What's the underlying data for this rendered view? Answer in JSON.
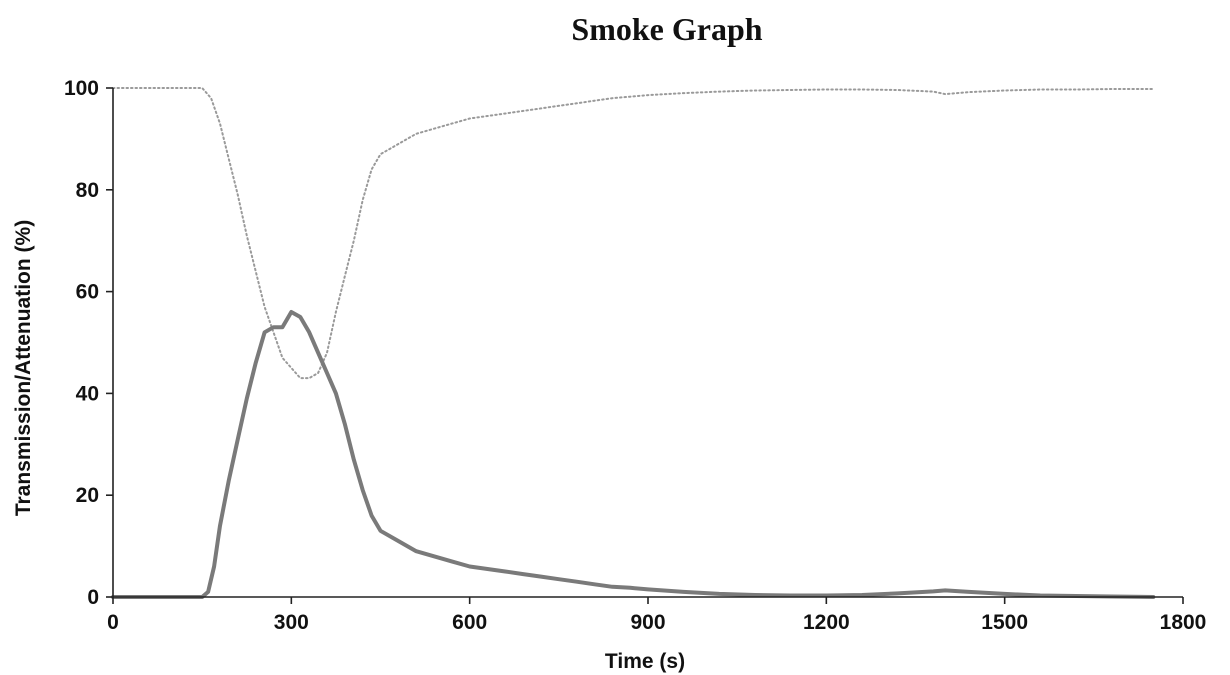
{
  "chart_data": {
    "type": "line",
    "title": "Smoke Graph",
    "subtitle": "",
    "xlabel": "Time (s)",
    "ylabel": "Transmission/Attenuation (%)",
    "xlim": [
      0,
      1800
    ],
    "ylim": [
      0,
      100
    ],
    "xticks": [
      0,
      300,
      600,
      900,
      1200,
      1500,
      1800
    ],
    "yticks": [
      0,
      20,
      40,
      60,
      80,
      100
    ],
    "grid": false,
    "legend": "none",
    "series": [
      {
        "color": "#9a9a9a",
        "style": "dotted",
        "x": [
          0,
          60,
          120,
          150,
          165,
          180,
          195,
          210,
          225,
          240,
          255,
          270,
          285,
          300,
          315,
          330,
          345,
          360,
          375,
          390,
          405,
          420,
          435,
          450,
          480,
          510,
          540,
          570,
          600,
          630,
          660,
          690,
          720,
          750,
          780,
          810,
          840,
          870,
          900,
          960,
          1020,
          1080,
          1140,
          1200,
          1260,
          1320,
          1380,
          1400,
          1440,
          1500,
          1560,
          1620,
          1680,
          1750
        ],
        "y": [
          100,
          100,
          100,
          100,
          98,
          93,
          86,
          79,
          71,
          64,
          57,
          52,
          47,
          45,
          43,
          43,
          44,
          48,
          56,
          63,
          70,
          78,
          84,
          87,
          89,
          91,
          92,
          93,
          94,
          94.5,
          95,
          95.5,
          96,
          96.5,
          97,
          97.5,
          98,
          98.3,
          98.6,
          99,
          99.3,
          99.5,
          99.6,
          99.7,
          99.7,
          99.6,
          99.3,
          98.8,
          99.2,
          99.5,
          99.7,
          99.7,
          99.8,
          99.8
        ]
      },
      {
        "color": "#7a7a7a",
        "style": "solid",
        "x": [
          0,
          60,
          120,
          150,
          160,
          170,
          180,
          195,
          210,
          225,
          240,
          255,
          270,
          285,
          300,
          315,
          330,
          345,
          360,
          375,
          390,
          405,
          420,
          435,
          450,
          480,
          510,
          540,
          570,
          600,
          630,
          660,
          690,
          720,
          750,
          780,
          810,
          840,
          870,
          900,
          960,
          1020,
          1080,
          1140,
          1200,
          1260,
          1320,
          1380,
          1400,
          1440,
          1500,
          1560,
          1620,
          1680,
          1750
        ],
        "y": [
          0,
          0,
          0,
          0,
          1,
          6,
          14,
          23,
          31,
          39,
          46,
          52,
          53,
          53,
          56,
          55,
          52,
          48,
          44,
          40,
          34,
          27,
          21,
          16,
          13,
          11,
          9,
          8,
          7,
          6,
          5.5,
          5,
          4.5,
          4,
          3.5,
          3,
          2.5,
          2,
          1.8,
          1.5,
          1,
          0.6,
          0.4,
          0.3,
          0.3,
          0.4,
          0.7,
          1.1,
          1.3,
          1,
          0.6,
          0.3,
          0.2,
          0.1,
          0
        ]
      }
    ]
  }
}
